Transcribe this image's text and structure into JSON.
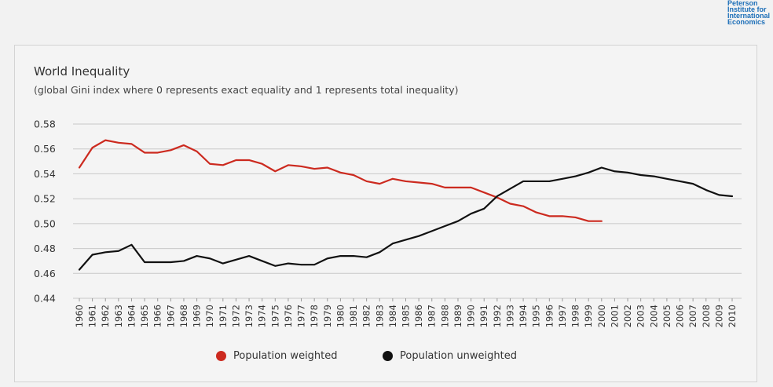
{
  "logo": {
    "lines": [
      "Peterson",
      "Institute for",
      "International",
      "Economics"
    ]
  },
  "chart_data": {
    "type": "line",
    "title": "World Inequality",
    "subtitle": "(global Gini index where 0 represents exact equality and 1 represents total inequality)",
    "xlabel": "",
    "ylabel": "",
    "ylim": [
      0.44,
      0.58
    ],
    "yticks": [
      "0.44",
      "0.46",
      "0.48",
      "0.50",
      "0.52",
      "0.54",
      "0.56",
      "0.58"
    ],
    "x": [
      "1960",
      "1961",
      "1962",
      "1963",
      "1964",
      "1965",
      "1966",
      "1967",
      "1968",
      "1969",
      "1970",
      "1971",
      "1972",
      "1973",
      "1974",
      "1975",
      "1976",
      "1977",
      "1978",
      "1979",
      "1980",
      "1981",
      "1982",
      "1983",
      "1984",
      "1985",
      "1986",
      "1987",
      "1988",
      "1989",
      "1990",
      "1991",
      "1992",
      "1993",
      "1994",
      "1995",
      "1996",
      "1997",
      "1998",
      "1999",
      "2000",
      "2001",
      "2002",
      "2003",
      "2004",
      "2005",
      "2006",
      "2007",
      "2008",
      "2009",
      "2010"
    ],
    "grid": true,
    "legend_position": "bottom",
    "series": [
      {
        "name": "Population weighted",
        "color": "#cc2a1f",
        "values": [
          0.545,
          0.561,
          0.567,
          0.565,
          0.564,
          0.557,
          0.557,
          0.559,
          0.563,
          0.558,
          0.548,
          0.547,
          0.551,
          0.551,
          0.548,
          0.542,
          0.547,
          0.546,
          0.544,
          0.545,
          0.541,
          0.539,
          0.534,
          0.532,
          0.536,
          0.534,
          0.533,
          0.532,
          0.529,
          0.529,
          0.529,
          0.525,
          0.521,
          0.516,
          0.514,
          0.509,
          0.506,
          0.506,
          0.505,
          0.502,
          0.502,
          null,
          null,
          null,
          null,
          null,
          null,
          null,
          null,
          null,
          null
        ]
      },
      {
        "name": "Population unweighted",
        "color": "#111111",
        "values": [
          0.463,
          0.475,
          0.477,
          0.478,
          0.483,
          0.469,
          0.469,
          0.469,
          0.47,
          0.474,
          0.472,
          0.468,
          0.471,
          0.474,
          0.47,
          0.466,
          0.468,
          0.467,
          0.467,
          0.472,
          0.474,
          0.474,
          0.473,
          0.477,
          0.484,
          0.487,
          0.49,
          0.494,
          0.498,
          0.502,
          0.508,
          0.512,
          0.522,
          0.528,
          0.534,
          0.534,
          0.534,
          0.536,
          0.538,
          0.541,
          0.545,
          0.542,
          0.541,
          0.539,
          0.538,
          0.536,
          0.534,
          0.532,
          0.527,
          0.523,
          0.522
        ]
      }
    ]
  }
}
